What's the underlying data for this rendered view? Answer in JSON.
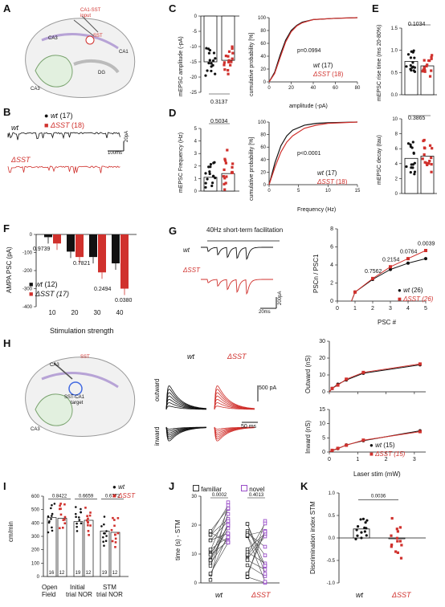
{
  "panels": {
    "A": "A",
    "B": "B",
    "C": "C",
    "D": "D",
    "E": "E",
    "F": "F",
    "G": "G",
    "H": "H",
    "I": "I",
    "J": "J",
    "K": "K"
  },
  "diagram": {
    "ca1_sst": "CA1-SST",
    "input": "input",
    "sst": "SST",
    "ca3": "CA3",
    "ca1": "CA1",
    "dg": "DG",
    "sst_ca1": "SST-CA1",
    "target": "target"
  },
  "B": {
    "wt_legend": "wt",
    "wt_n": "(17)",
    "sst_legend": "ΔSST",
    "sst_n": "(18)",
    "wt_label": "wt",
    "sst_label": "ΔSST",
    "scale_y": "20pA",
    "scale_x": "100ms"
  },
  "C": {
    "ylabel": "mEPSC amplitude (-pA)",
    "yticks": [
      "0",
      "-5",
      "-10",
      "-15",
      "-20",
      "-25"
    ],
    "pvalue": "0.3137",
    "cdf_ylabel": "cumulative probability [%]",
    "cdf_xlabel": "amplitude (-pA)",
    "cdf_xticks": [
      "0",
      "20",
      "40",
      "60",
      "80"
    ],
    "cdf_yticks": [
      "0",
      "20",
      "40",
      "60",
      "80",
      "100"
    ],
    "cdf_p": "p=0.0994",
    "leg_wt": "wt",
    "leg_wt_n": "(17)",
    "leg_sst": "ΔSST",
    "leg_sst_n": "(18)"
  },
  "D": {
    "ylabel": "mEPSC Frequency (Hz)",
    "yticks": [
      "0",
      "1",
      "2",
      "3",
      "4",
      "5"
    ],
    "pvalue": "0.5034",
    "cdf_ylabel": "cumulative probability [%]",
    "cdf_xlabel": "Frequency (Hz)",
    "cdf_xticks": [
      "0",
      "5",
      "10",
      "15"
    ],
    "cdf_yticks": [
      "0",
      "20",
      "40",
      "60",
      "80",
      "100"
    ],
    "cdf_p": "p<0.0001",
    "leg_wt": "wt",
    "leg_wt_n": "(17)",
    "leg_sst": "ΔSST",
    "leg_sst_n": "(18)"
  },
  "E": {
    "rise_ylabel": "mEPSC rise time (ms 20-80%)",
    "rise_yticks": [
      "0.0",
      "0.5",
      "1.0",
      "1.5"
    ],
    "rise_p": "0.1034",
    "decay_ylabel": "mEPSC decay (tau)",
    "decay_yticks": [
      "0",
      "2",
      "4",
      "6",
      "8",
      "10"
    ],
    "decay_p": "0.3865"
  },
  "F": {
    "ylabel": "AMPA PSC (pA)",
    "xlabel": "Stimulation strength",
    "yticks": [
      "0",
      "-100",
      "-200",
      "-300",
      "-400"
    ],
    "xticks": [
      "10",
      "20",
      "30",
      "40"
    ],
    "pvals": [
      "0.9739",
      "0.7821",
      "0.2494",
      "0.0380"
    ],
    "leg_wt": "wt",
    "leg_wt_n": "(12)",
    "leg_sst": "ΔSST (17)"
  },
  "G": {
    "title": "40Hz short-term facilitation",
    "wt": "wt",
    "sst": "ΔSST",
    "scale_y": "200pA",
    "scale_x": "20ms",
    "ylabel": "PSCn / PSC1",
    "xlabel": "PSC #",
    "yticks": [
      "0",
      "2",
      "4",
      "6",
      "8"
    ],
    "xticks": [
      "0",
      "1",
      "2",
      "3",
      "4",
      "5"
    ],
    "pvals": [
      "0.7562",
      "0.2154",
      "0.0764",
      "0.0039"
    ],
    "leg_wt": "wt",
    "leg_wt_n": "(26)",
    "leg_sst": "ΔSST (26)"
  },
  "H": {
    "wt": "wt",
    "sst": "ΔSST",
    "outward": "outward",
    "inward": "inward",
    "scale_y": "500 pA",
    "scale_x": "50 ms",
    "out_ylabel": "Outward (nS)",
    "out_yticks": [
      "0",
      "10",
      "20",
      "30"
    ],
    "in_ylabel": "Inward (nS)",
    "in_yticks": [
      "0",
      "5",
      "10",
      "15"
    ],
    "xlabel": "Laser stim (mW)",
    "xticks": [
      "0",
      "1",
      "2",
      "3"
    ],
    "leg_wt": "wt",
    "leg_wt_n": "(15)",
    "leg_sst": "ΔSST (15)"
  },
  "I": {
    "ylabel": "cm/min",
    "yticks": [
      "0",
      "100",
      "200",
      "300",
      "400",
      "500",
      "600"
    ],
    "pvals": [
      "0.8422",
      "0.6659",
      "0.6772"
    ],
    "ns": [
      "16",
      "12",
      "19",
      "12",
      "19",
      "12"
    ],
    "groups": [
      "Open",
      "Field",
      "Initial",
      "trial NOR",
      "STM",
      "trial NOR"
    ],
    "leg_wt": "wt",
    "leg_sst": "ΔSST"
  },
  "J": {
    "ylabel": "time (s) - STM",
    "yticks": [
      "0",
      "10",
      "20",
      "30"
    ],
    "leg_familiar": "familiar",
    "leg_novel": "novel",
    "pvals": [
      "0.0002",
      "0.4013"
    ],
    "xlabels": [
      "wt",
      "ΔSST"
    ]
  },
  "K": {
    "ylabel": "Discrimination index STM",
    "yticks": [
      "-1.0",
      "-0.5",
      "0.0",
      "0.5",
      "1.0"
    ],
    "pvalue": "0.0036",
    "xlabels": [
      "wt",
      "ΔSST"
    ]
  },
  "chart_data": [
    {
      "panel": "C-bar",
      "type": "bar",
      "categories": [
        "wt",
        "ΔSST"
      ],
      "values": [
        -15,
        -14.5
      ],
      "ylim": [
        -25,
        0
      ],
      "ylabel": "mEPSC amplitude (-pA)"
    },
    {
      "panel": "C-cdf",
      "type": "line",
      "series": [
        {
          "name": "wt",
          "x": [
            0,
            5,
            10,
            15,
            20,
            25,
            30,
            40,
            60,
            80
          ],
          "y": [
            0,
            15,
            42,
            65,
            80,
            88,
            93,
            97,
            99,
            100
          ]
        },
        {
          "name": "ΔSST",
          "x": [
            0,
            5,
            10,
            15,
            20,
            25,
            30,
            40,
            60,
            80
          ],
          "y": [
            0,
            13,
            38,
            62,
            78,
            87,
            92,
            97,
            99,
            100
          ]
        }
      ],
      "xlabel": "amplitude (-pA)",
      "ylabel": "cumulative probability [%]",
      "xlim": [
        0,
        80
      ],
      "ylim": [
        0,
        100
      ]
    },
    {
      "panel": "D-bar",
      "type": "bar",
      "categories": [
        "wt",
        "ΔSST"
      ],
      "values": [
        1.1,
        1.4
      ],
      "ylim": [
        0,
        5
      ],
      "ylabel": "mEPSC Frequency (Hz)"
    },
    {
      "panel": "D-cdf",
      "type": "line",
      "series": [
        {
          "name": "wt",
          "x": [
            0,
            1,
            2,
            3,
            4,
            6,
            8,
            10,
            15
          ],
          "y": [
            0,
            35,
            62,
            78,
            87,
            95,
            98,
            99,
            100
          ]
        },
        {
          "name": "ΔSST",
          "x": [
            0,
            1,
            2,
            3,
            4,
            6,
            8,
            10,
            15
          ],
          "y": [
            0,
            28,
            52,
            68,
            78,
            90,
            95,
            98,
            100
          ]
        }
      ],
      "xlabel": "Frequency (Hz)",
      "ylabel": "cumulative probability [%]",
      "xlim": [
        0,
        15
      ],
      "ylim": [
        0,
        100
      ]
    },
    {
      "panel": "E-rise",
      "type": "bar",
      "categories": [
        "wt",
        "ΔSST"
      ],
      "values": [
        0.75,
        0.65
      ],
      "ylim": [
        0,
        1.5
      ]
    },
    {
      "panel": "E-decay",
      "type": "bar",
      "categories": [
        "wt",
        "ΔSST"
      ],
      "values": [
        4.7,
        5.0
      ],
      "ylim": [
        0,
        10
      ]
    },
    {
      "panel": "F",
      "type": "bar",
      "categories": [
        "10",
        "20",
        "30",
        "40"
      ],
      "series": [
        {
          "name": "wt",
          "values": [
            -15,
            -95,
            -125,
            -160
          ]
        },
        {
          "name": "ΔSST",
          "values": [
            -50,
            -125,
            -210,
            -300
          ]
        }
      ],
      "ylim": [
        -400,
        0
      ],
      "xlabel": "Stimulation strength",
      "ylabel": "AMPA PSC (pA)"
    },
    {
      "panel": "G",
      "type": "line",
      "series": [
        {
          "name": "wt",
          "x": [
            1,
            2,
            3,
            4,
            5
          ],
          "y": [
            1,
            2.4,
            3.5,
            4.2,
            4.7
          ]
        },
        {
          "name": "ΔSST",
          "x": [
            1,
            2,
            3,
            4,
            5
          ],
          "y": [
            1,
            2.5,
            3.8,
            4.7,
            5.6
          ]
        }
      ],
      "xlabel": "PSC #",
      "ylabel": "PSCn / PSC1",
      "xlim": [
        0,
        5
      ],
      "ylim": [
        0,
        8
      ]
    },
    {
      "panel": "H-out",
      "type": "line",
      "series": [
        {
          "name": "wt",
          "x": [
            0.1,
            0.3,
            0.6,
            1.2,
            3.2
          ],
          "y": [
            2,
            4.5,
            7,
            11,
            16
          ]
        },
        {
          "name": "ΔSST",
          "x": [
            0.1,
            0.3,
            0.6,
            1.2,
            3.2
          ],
          "y": [
            2,
            4,
            7.5,
            11.5,
            16.5
          ]
        }
      ],
      "ylim": [
        0,
        30
      ],
      "xlim": [
        0,
        3.4
      ]
    },
    {
      "panel": "H-in",
      "type": "line",
      "series": [
        {
          "name": "wt",
          "x": [
            0.1,
            0.3,
            0.6,
            1.2,
            3.2
          ],
          "y": [
            0.5,
            1.2,
            2.5,
            4,
            7.5
          ]
        },
        {
          "name": "ΔSST",
          "x": [
            0.1,
            0.3,
            0.6,
            1.2,
            3.2
          ],
          "y": [
            0.6,
            1.3,
            2.4,
            4.2,
            7.2
          ]
        }
      ],
      "ylim": [
        0,
        15
      ],
      "xlim": [
        0,
        3.4
      ]
    },
    {
      "panel": "I",
      "type": "bar",
      "categories": [
        "Open Field",
        "Initial trial NOR",
        "STM trial NOR"
      ],
      "series": [
        {
          "name": "wt",
          "values": [
            440,
            410,
            340
          ]
        },
        {
          "name": "ΔSST",
          "values": [
            435,
            420,
            330
          ]
        }
      ],
      "ylim": [
        0,
        600
      ],
      "ylabel": "cm/min"
    },
    {
      "panel": "J",
      "type": "scatter",
      "series": [
        {
          "name": "familiar",
          "values": [
            5,
            8,
            12,
            3,
            15,
            2,
            10,
            6,
            4,
            9
          ]
        },
        {
          "name": "novel",
          "values": [
            25,
            20,
            27,
            18,
            26,
            22,
            24,
            19,
            15,
            21
          ]
        }
      ],
      "ylim": [
        0,
        30
      ],
      "ylabel": "time (s) - STM"
    },
    {
      "panel": "K",
      "type": "bar",
      "categories": [
        "wt",
        "ΔSST"
      ],
      "values": [
        0.2,
        0.0
      ],
      "ylim": [
        -1,
        1
      ],
      "ylabel": "Discrimination index STM"
    }
  ]
}
